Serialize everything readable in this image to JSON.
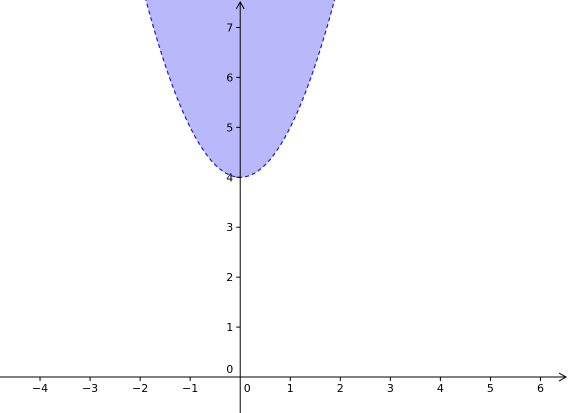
{
  "chart_data": {
    "type": "area",
    "title": "",
    "xlabel": "",
    "ylabel": "",
    "xlim": [
      -4.8,
      6.55
    ],
    "ylim": [
      -0.72,
      7.55
    ],
    "grid": false,
    "x_ticks": [
      -4,
      -3,
      -2,
      -1,
      1,
      2,
      3,
      4,
      5,
      6
    ],
    "y_ticks": [
      1,
      2,
      3,
      4,
      5,
      6,
      7
    ],
    "origin_label": "0",
    "series": [
      {
        "curve": "y = x^2 + 4",
        "x_range": [
          -1.9,
          1.9
        ],
        "x": [
          -1.9,
          -1.5,
          -1,
          -0.5,
          0,
          0.5,
          1,
          1.5,
          1.9
        ],
        "y": [
          7.61,
          6.25,
          5,
          4.25,
          4,
          4.25,
          5,
          6.25,
          7.61
        ],
        "fill": "above",
        "boundary_style": "dashed"
      }
    ],
    "colors": {
      "fill": "#b8b8fb",
      "boundary": "#1a1ae0",
      "axis": "#000000"
    }
  }
}
